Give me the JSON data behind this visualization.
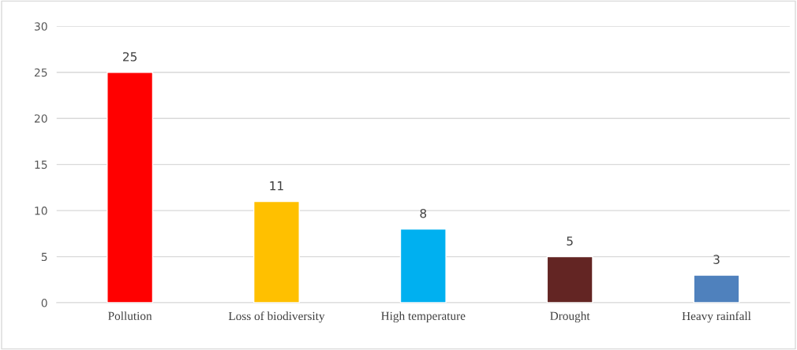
{
  "chart_data": {
    "type": "bar",
    "categories": [
      "Pollution",
      "Loss of biodiversity",
      "High temperature",
      "Drought",
      "Heavy rainfall"
    ],
    "values": [
      25,
      11,
      8,
      5,
      3
    ],
    "colors": [
      "#ff0000",
      "#ffc000",
      "#00b0f0",
      "#632523",
      "#4f81bd"
    ],
    "ylim": [
      0,
      30
    ],
    "yticks": [
      0,
      5,
      10,
      15,
      20,
      25,
      30
    ],
    "grid": "y",
    "data_labels": true
  }
}
